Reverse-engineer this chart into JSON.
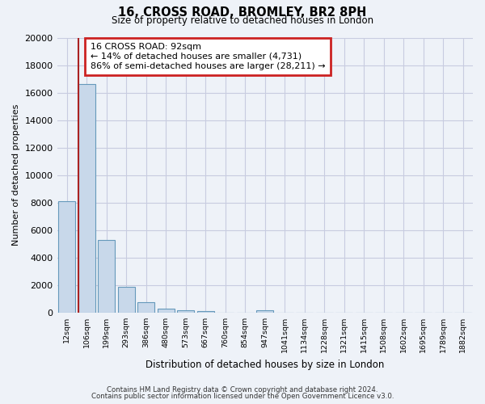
{
  "title1": "16, CROSS ROAD, BROMLEY, BR2 8PH",
  "title2": "Size of property relative to detached houses in London",
  "xlabel": "Distribution of detached houses by size in London",
  "ylabel": "Number of detached properties",
  "bar_labels": [
    "12sqm",
    "106sqm",
    "199sqm",
    "293sqm",
    "386sqm",
    "480sqm",
    "573sqm",
    "667sqm",
    "760sqm",
    "854sqm",
    "947sqm",
    "1041sqm",
    "1134sqm",
    "1228sqm",
    "1321sqm",
    "1415sqm",
    "1508sqm",
    "1602sqm",
    "1695sqm",
    "1789sqm",
    "1882sqm"
  ],
  "bar_values": [
    8100,
    16600,
    5300,
    1850,
    750,
    300,
    200,
    100,
    0,
    0,
    150,
    0,
    0,
    0,
    0,
    0,
    0,
    0,
    0,
    0,
    0
  ],
  "bar_color": "#c8d8ea",
  "bar_edge_color": "#6699bb",
  "grid_color": "#c8cce0",
  "background_color": "#eef2f8",
  "marker_line_color": "#aa2222",
  "ylim": [
    0,
    20000
  ],
  "yticks": [
    0,
    2000,
    4000,
    6000,
    8000,
    10000,
    12000,
    14000,
    16000,
    18000,
    20000
  ],
  "annotation_line1": "16 CROSS ROAD: 92sqm",
  "annotation_line2": "← 14% of detached houses are smaller (4,731)",
  "annotation_line3": "86% of semi-detached houses are larger (28,211) →",
  "annotation_box_color": "#ffffff",
  "annotation_box_edge": "#cc2222",
  "footnote1": "Contains HM Land Registry data © Crown copyright and database right 2024.",
  "footnote2": "Contains public sector information licensed under the Open Government Licence v3.0."
}
